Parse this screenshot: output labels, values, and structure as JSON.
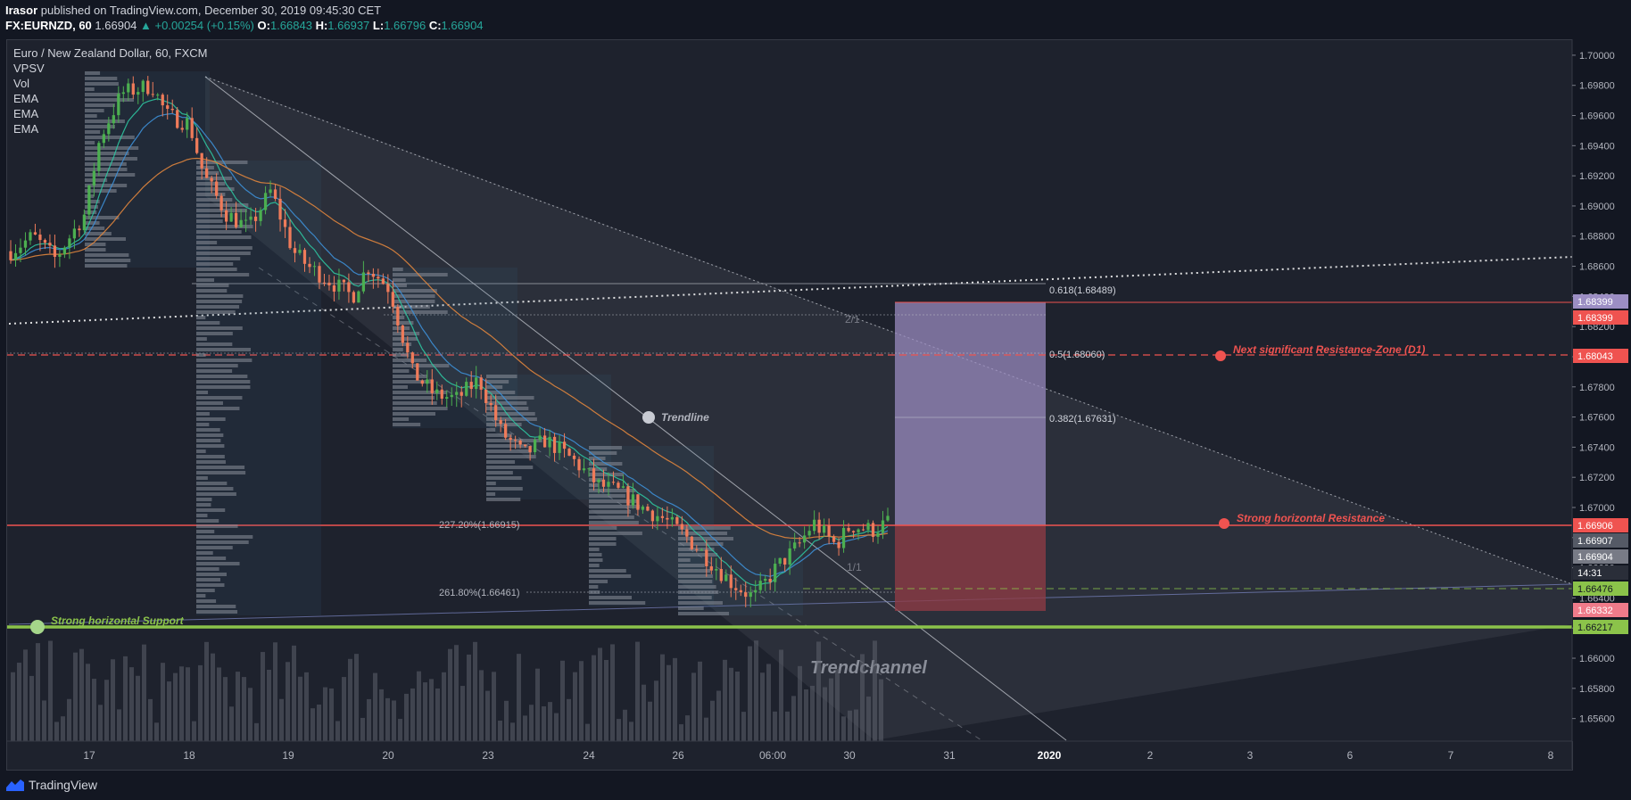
{
  "header": {
    "author": "Irasor",
    "published_text": "published on TradingView.com, December 30, 2019 09:45:30 CET",
    "symbol": "FX:EURNZD, 60",
    "last": "1.66904",
    "change": "+0.00254 (+0.15%)",
    "o_label": "O:",
    "o_val": "1.66843",
    "h_label": "H:",
    "h_val": "1.66937",
    "l_label": "L:",
    "l_val": "1.66796",
    "c_label": "C:",
    "c_val": "1.66904"
  },
  "legend": {
    "title": "Euro / New Zealand Dollar, 60, FXCM",
    "items": [
      "VPSV",
      "Vol",
      "EMA",
      "EMA",
      "EMA"
    ]
  },
  "footer": {
    "brand": "TradingView"
  },
  "colors": {
    "up": "#4caf50",
    "down": "#ef7b5a",
    "resistance": "#ef5350",
    "support": "#8bc34a",
    "ema_fast": "#2ec4a0",
    "ema_mid": "#3d8fd6",
    "ema_slow": "#e0853d",
    "channel": "#b2b5be",
    "long_target": "#9c8ec4",
    "long_stop": "#8e3b45"
  },
  "chart_data": {
    "type": "candlestick",
    "symbol": "FX:EURNZD",
    "timeframe": "60",
    "ylim": [
      1.6545,
      1.701
    ],
    "y_ticks": [
      1.656,
      1.658,
      1.66,
      1.662,
      1.664,
      1.666,
      1.668,
      1.67,
      1.672,
      1.674,
      1.676,
      1.678,
      1.68,
      1.682,
      1.684,
      1.686,
      1.688,
      1.69,
      1.692,
      1.694,
      1.696,
      1.698,
      1.7
    ],
    "x_ticks": [
      "17",
      "18",
      "19",
      "20",
      "23",
      "24",
      "26",
      "06:00",
      "30",
      "31",
      "2020",
      "2",
      "3",
      "6",
      "7",
      "8"
    ],
    "price_path": [
      [
        0,
        1.687
      ],
      [
        0.3,
        1.688
      ],
      [
        0.6,
        1.6865
      ],
      [
        1.0,
        1.6895
      ],
      [
        1.2,
        1.6945
      ],
      [
        1.5,
        1.6975
      ],
      [
        1.9,
        1.698
      ],
      [
        2.1,
        1.696
      ],
      [
        2.4,
        1.6955
      ],
      [
        2.6,
        1.692
      ],
      [
        2.9,
        1.6895
      ],
      [
        3.2,
        1.6885
      ],
      [
        3.5,
        1.691
      ],
      [
        3.8,
        1.687
      ],
      [
        4.0,
        1.686
      ],
      [
        4.3,
        1.685
      ],
      [
        4.6,
        1.684
      ],
      [
        4.8,
        1.686
      ],
      [
        5.1,
        1.6845
      ],
      [
        5.4,
        1.679
      ],
      [
        5.7,
        1.6775
      ],
      [
        6.0,
        1.6772
      ],
      [
        6.3,
        1.6785
      ],
      [
        6.6,
        1.675
      ],
      [
        6.9,
        1.6735
      ],
      [
        7.2,
        1.6745
      ],
      [
        7.6,
        1.673
      ],
      [
        7.9,
        1.6715
      ],
      [
        8.2,
        1.671
      ],
      [
        8.5,
        1.67
      ],
      [
        8.8,
        1.6692
      ],
      [
        9.1,
        1.668
      ],
      [
        9.4,
        1.6665
      ],
      [
        9.7,
        1.665
      ],
      [
        10.0,
        1.664
      ],
      [
        10.3,
        1.666
      ],
      [
        10.6,
        1.6675
      ],
      [
        10.8,
        1.669
      ],
      [
        11.1,
        1.6675
      ],
      [
        11.3,
        1.6688
      ],
      [
        11.6,
        1.6685
      ],
      [
        11.8,
        1.669
      ]
    ],
    "levels": [
      {
        "label": "Strong horizontal Resistance",
        "price": 1.66906
      },
      {
        "label": "Next significant Resistance-Zone (D1)",
        "price": 1.68043
      },
      {
        "label": "Strong horizontal Support",
        "price": 1.66217
      }
    ],
    "fib_levels": [
      {
        "label": "0.618(1.68489)",
        "price": 1.68489
      },
      {
        "label": "0.5(1.68060)",
        "price": 1.6806
      },
      {
        "label": "0.382(1.67631)",
        "price": 1.67631
      },
      {
        "label": "227.20%(1.66915)",
        "price": 1.66915
      },
      {
        "label": "261.80%(1.66461)",
        "price": 1.66461
      }
    ],
    "annotations": [
      "Trendline",
      "Trendchannel",
      "2/1",
      "1/1"
    ],
    "price_labels": [
      {
        "text": "1.68399",
        "kind": "target"
      },
      {
        "text": "1.68399",
        "kind": "resistance"
      },
      {
        "text": "1.68043",
        "kind": "resistance"
      },
      {
        "text": "1.66906",
        "kind": "resistance"
      },
      {
        "text": "1.66907",
        "kind": "neutral"
      },
      {
        "text": "1.66904",
        "kind": "last"
      },
      {
        "text": "14:31",
        "kind": "dark"
      },
      {
        "text": "1.66476",
        "kind": "support"
      },
      {
        "text": "1.66332",
        "kind": "stop"
      },
      {
        "text": "1.66217",
        "kind": "support"
      }
    ]
  }
}
